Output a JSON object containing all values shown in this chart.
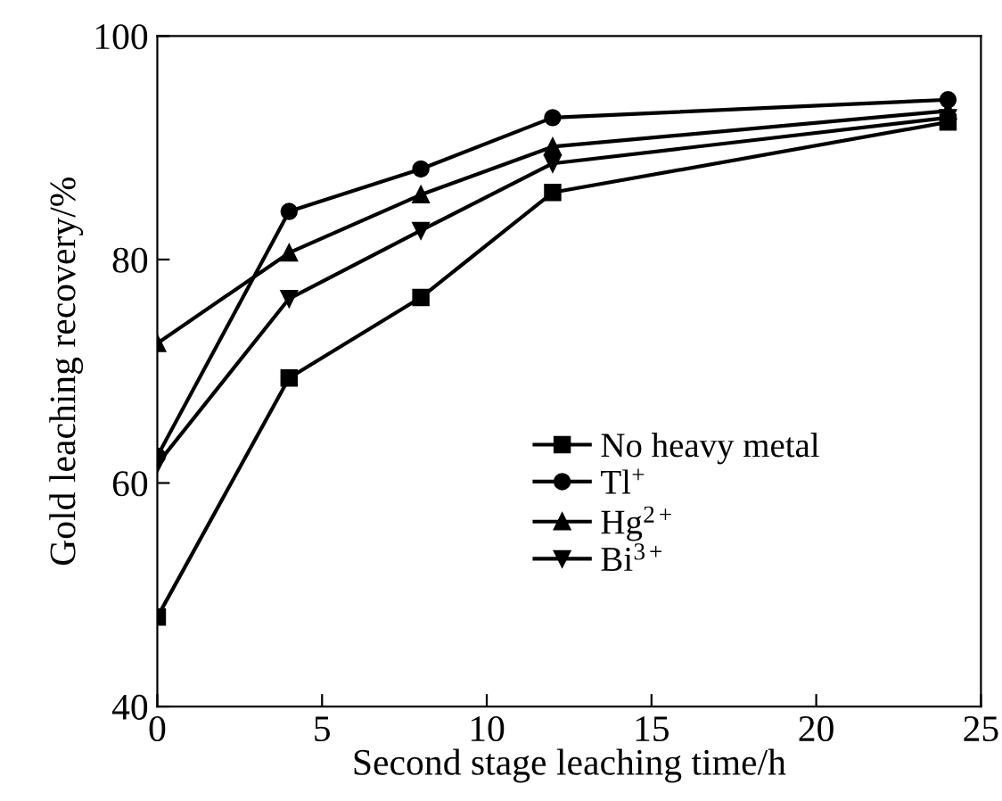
{
  "chart_data": {
    "type": "line",
    "xlabel": "Second stage leaching time/h",
    "ylabel": "Gold leaching recovery/%",
    "x": [
      0,
      4,
      8,
      12,
      24
    ],
    "series": [
      {
        "name": "No heavy metal",
        "color": "#000000",
        "marker": "square",
        "values": [
          48,
          69.4,
          76.6,
          86,
          92.3
        ]
      },
      {
        "name": "Tl$^{+}$",
        "color": "#000000",
        "marker": "circle",
        "values": [
          62.4,
          84.3,
          88.1,
          92.7,
          94.3
        ]
      },
      {
        "name": "Hg$^{2+}$",
        "color": "#000000",
        "marker": "triangle",
        "values": [
          72.5,
          80.6,
          85.8,
          90.1,
          93.3
        ]
      },
      {
        "name": "Bi$^{3+}$",
        "color": "#000000",
        "marker": "triangle_down",
        "values": [
          61.7,
          76.5,
          82.6,
          88.6,
          92.7
        ]
      }
    ],
    "xlim": [
      0,
      25
    ],
    "xticks": [
      0,
      5,
      10,
      15,
      20,
      25
    ],
    "ylim": [
      40,
      100
    ],
    "yticks": [
      40,
      60,
      80,
      100
    ],
    "grid": false,
    "legend": "center right",
    "line_style": "solid"
  }
}
